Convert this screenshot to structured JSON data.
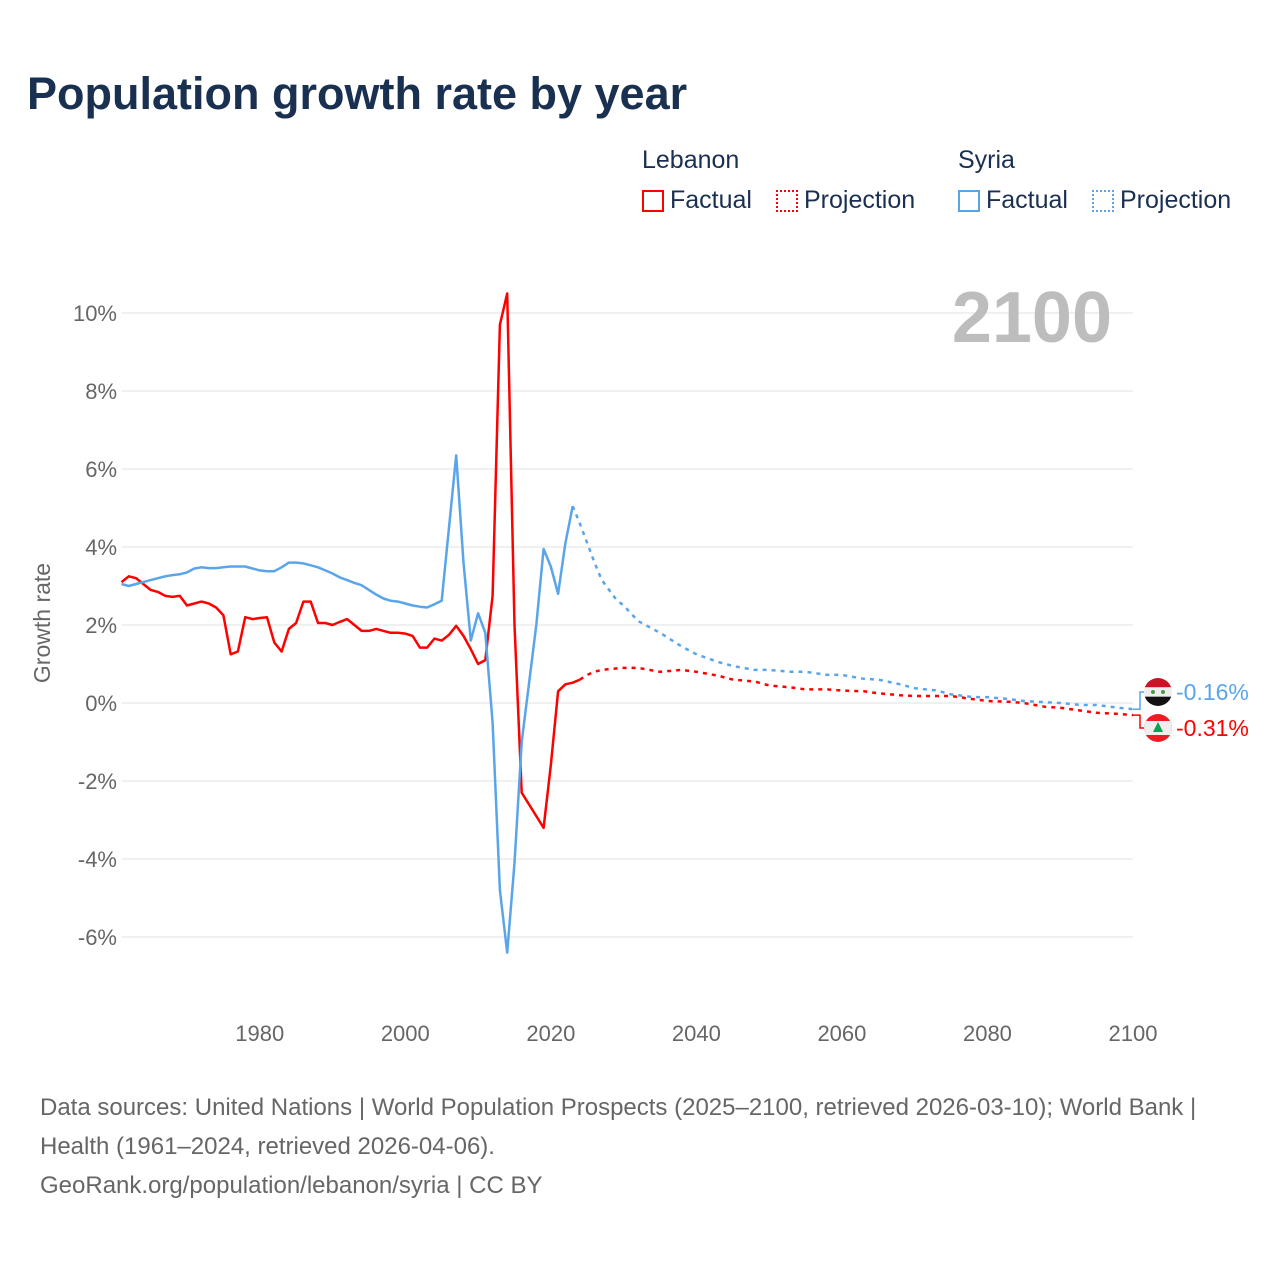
{
  "title": "Population growth rate by year",
  "legend": {
    "groups": [
      {
        "name": "Lebanon",
        "factual": "Factual",
        "projection": "Projection",
        "color": "#ff0000"
      },
      {
        "name": "Syria",
        "factual": "Factual",
        "projection": "Projection",
        "color": "#5aa5ea"
      }
    ]
  },
  "year_badge": "2100",
  "footer": {
    "sources": "Data sources: United Nations | World Population Prospects (2025–2100, retrieved 2026-03-10); World Bank | Health (1961–2024, retrieved 2026-04-06).",
    "credit": "GeoRank.org/population/lebanon/syria | CC BY"
  },
  "chart_data": {
    "type": "line",
    "title": "Population growth rate by year",
    "xlabel": "",
    "ylabel": "Growth rate",
    "xlim": [
      1961,
      2100
    ],
    "ylim": [
      -7.5,
      11
    ],
    "x_ticks": [
      1980,
      2000,
      2020,
      2040,
      2060,
      2080,
      2100
    ],
    "y_ticks": [
      10,
      8,
      6,
      4,
      2,
      0,
      -2,
      -4,
      -6
    ],
    "y_tick_labels": [
      "10%",
      "8%",
      "6%",
      "4%",
      "2%",
      "0%",
      "-2%",
      "-4%",
      "-6%"
    ],
    "grid": true,
    "legend_position": "top-right",
    "end_labels": {
      "Syria": "-0.16%",
      "Lebanon": "-0.31%"
    },
    "series": [
      {
        "name": "Lebanon Factual",
        "color": "#ff0000",
        "dashed": false,
        "x": [
          1961,
          1962,
          1963,
          1964,
          1965,
          1966,
          1967,
          1968,
          1969,
          1970,
          1971,
          1972,
          1973,
          1974,
          1975,
          1976,
          1977,
          1978,
          1979,
          1980,
          1981,
          1982,
          1983,
          1984,
          1985,
          1986,
          1987,
          1988,
          1989,
          1990,
          1991,
          1992,
          1993,
          1994,
          1995,
          1996,
          1997,
          1998,
          1999,
          2000,
          2001,
          2002,
          2003,
          2004,
          2005,
          2006,
          2007,
          2008,
          2009,
          2010,
          2011,
          2012,
          2013,
          2014,
          2015,
          2016,
          2017,
          2018,
          2019,
          2020,
          2021,
          2022,
          2023,
          2024
        ],
        "y": [
          3.1,
          3.25,
          3.2,
          3.05,
          2.9,
          2.85,
          2.75,
          2.72,
          2.75,
          2.5,
          2.55,
          2.6,
          2.55,
          2.45,
          2.25,
          1.25,
          1.32,
          2.2,
          2.15,
          2.18,
          2.2,
          1.55,
          1.32,
          1.9,
          2.05,
          2.6,
          2.6,
          2.05,
          2.05,
          2.0,
          2.08,
          2.15,
          2.0,
          1.85,
          1.85,
          1.9,
          1.85,
          1.8,
          1.8,
          1.78,
          1.72,
          1.42,
          1.42,
          1.65,
          1.6,
          1.75,
          1.98,
          1.72,
          1.38,
          1.0,
          1.1,
          2.75,
          9.7,
          10.5,
          2.0,
          -2.3,
          -2.6,
          -2.9,
          -3.2,
          -1.6,
          0.3,
          0.48,
          0.52,
          0.6
        ]
      },
      {
        "name": "Lebanon Projection",
        "color": "#ff0000",
        "dashed": true,
        "x": [
          2024,
          2025,
          2026,
          2027,
          2028,
          2030,
          2032,
          2035,
          2038,
          2040,
          2043,
          2045,
          2048,
          2050,
          2053,
          2055,
          2058,
          2060,
          2063,
          2065,
          2068,
          2070,
          2073,
          2075,
          2078,
          2080,
          2083,
          2085,
          2088,
          2090,
          2093,
          2095,
          2098,
          2100
        ],
        "y": [
          0.6,
          0.72,
          0.8,
          0.85,
          0.87,
          0.9,
          0.9,
          0.8,
          0.85,
          0.8,
          0.7,
          0.6,
          0.55,
          0.45,
          0.4,
          0.35,
          0.35,
          0.32,
          0.3,
          0.25,
          0.2,
          0.18,
          0.18,
          0.18,
          0.1,
          0.05,
          0.03,
          0.0,
          -0.1,
          -0.12,
          -0.2,
          -0.25,
          -0.28,
          -0.31
        ]
      },
      {
        "name": "Syria Factual",
        "color": "#5aa5ea",
        "dashed": false,
        "x": [
          1961,
          1962,
          1963,
          1964,
          1965,
          1966,
          1967,
          1968,
          1969,
          1970,
          1971,
          1972,
          1973,
          1974,
          1975,
          1976,
          1977,
          1978,
          1979,
          1980,
          1981,
          1982,
          1983,
          1984,
          1985,
          1986,
          1987,
          1988,
          1989,
          1990,
          1991,
          1992,
          1993,
          1994,
          1995,
          1996,
          1997,
          1998,
          1999,
          2000,
          2001,
          2002,
          2003,
          2004,
          2005,
          2006,
          2007,
          2008,
          2009,
          2010,
          2011,
          2012,
          2013,
          2014,
          2015,
          2016,
          2017,
          2018,
          2019,
          2020,
          2021,
          2022,
          2023
        ],
        "y": [
          3.05,
          3.0,
          3.05,
          3.1,
          3.15,
          3.2,
          3.25,
          3.28,
          3.3,
          3.35,
          3.45,
          3.48,
          3.46,
          3.46,
          3.48,
          3.5,
          3.5,
          3.5,
          3.45,
          3.4,
          3.38,
          3.38,
          3.48,
          3.6,
          3.6,
          3.58,
          3.53,
          3.48,
          3.4,
          3.32,
          3.22,
          3.15,
          3.08,
          3.02,
          2.9,
          2.78,
          2.68,
          2.62,
          2.6,
          2.55,
          2.5,
          2.47,
          2.45,
          2.53,
          2.62,
          4.5,
          6.35,
          3.6,
          1.6,
          2.3,
          1.8,
          -0.5,
          -4.8,
          -6.4,
          -4.1,
          -1.0,
          0.5,
          2.0,
          3.95,
          3.5,
          2.8,
          4.1,
          5.05
        ]
      },
      {
        "name": "Syria Projection",
        "color": "#5aa5ea",
        "dashed": true,
        "x": [
          2023,
          2024,
          2025,
          2026,
          2027,
          2028,
          2029,
          2030,
          2032,
          2035,
          2038,
          2040,
          2043,
          2045,
          2048,
          2050,
          2053,
          2055,
          2058,
          2060,
          2063,
          2065,
          2068,
          2070,
          2073,
          2075,
          2078,
          2080,
          2083,
          2085,
          2088,
          2090,
          2093,
          2095,
          2098,
          2100
        ],
        "y": [
          5.05,
          4.6,
          4.1,
          3.6,
          3.15,
          2.9,
          2.65,
          2.5,
          2.1,
          1.8,
          1.45,
          1.25,
          1.05,
          0.95,
          0.85,
          0.85,
          0.8,
          0.8,
          0.72,
          0.72,
          0.62,
          0.6,
          0.48,
          0.38,
          0.32,
          0.22,
          0.15,
          0.15,
          0.1,
          0.05,
          0.02,
          0.0,
          -0.05,
          -0.05,
          -0.12,
          -0.16
        ]
      }
    ]
  }
}
